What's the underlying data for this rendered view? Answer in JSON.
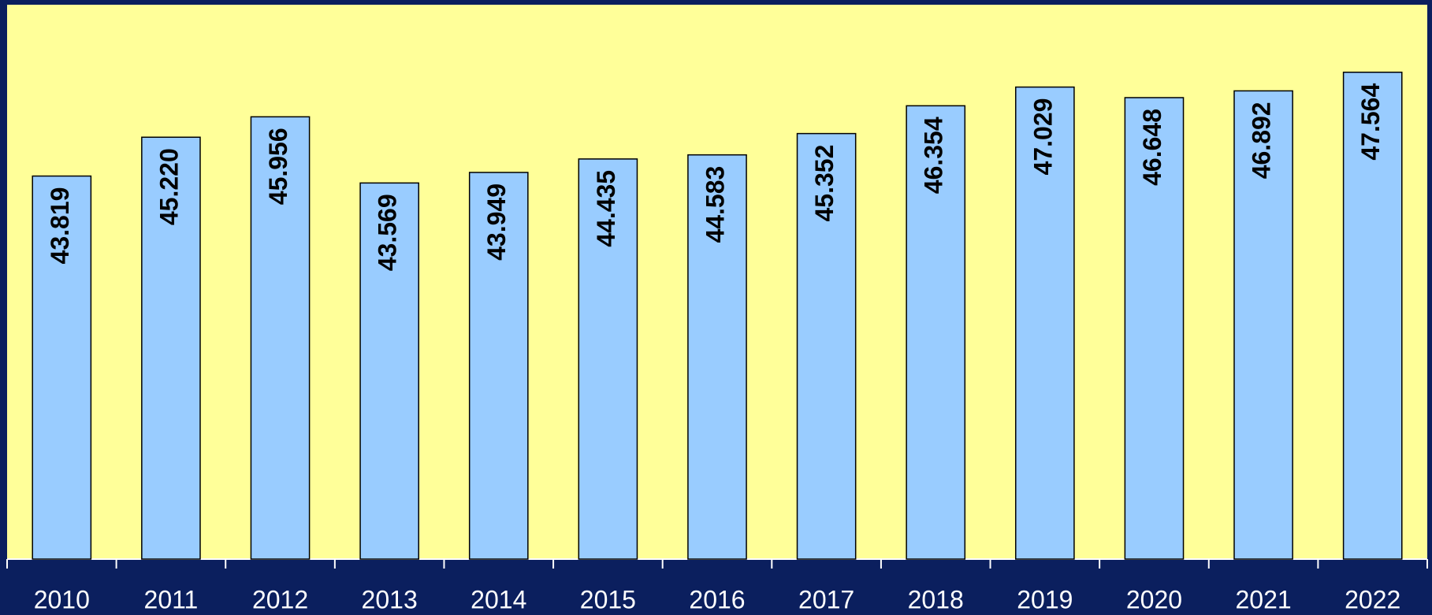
{
  "chart_data": {
    "type": "bar",
    "categories": [
      "2010",
      "2011",
      "2012",
      "2013",
      "2014",
      "2015",
      "2016",
      "2017",
      "2018",
      "2019",
      "2020",
      "2021",
      "2022"
    ],
    "values": [
      43.819,
      45.22,
      45.956,
      43.569,
      43.949,
      44.435,
      44.583,
      45.352,
      46.354,
      47.029,
      46.648,
      46.892,
      47.564
    ],
    "value_labels": [
      "43.819",
      "45.220",
      "45.956",
      "43.569",
      "43.949",
      "44.435",
      "44.583",
      "45.352",
      "46.354",
      "47.029",
      "46.648",
      "46.892",
      "47.564"
    ],
    "color": "#99ccff",
    "ylim": [
      30,
      50
    ]
  }
}
